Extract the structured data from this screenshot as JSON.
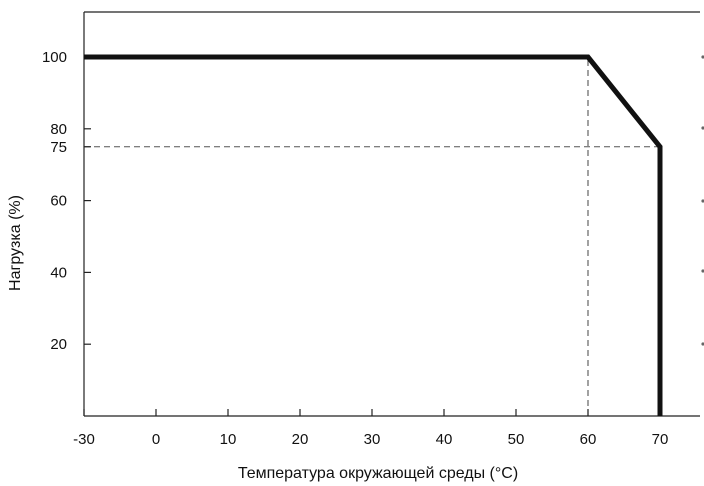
{
  "chart_data": {
    "type": "line",
    "title": "",
    "xlabel": "Температура окружающей среды (°C)",
    "ylabel": "Нагрузка (%)",
    "xlim": [
      -30,
      74
    ],
    "ylim": [
      0,
      113
    ],
    "x_ticks": [
      "-30",
      "0",
      "10",
      "20",
      "30",
      "40",
      "50",
      "60",
      "70"
    ],
    "y_ticks": [
      "100",
      "80",
      "75",
      "60",
      "40",
      "20"
    ],
    "series": [
      {
        "x": [
          -30,
          60,
          70,
          70
        ],
        "y": [
          100,
          100,
          75,
          0
        ]
      }
    ],
    "reference_lines": [
      {
        "points": [
          [
            -30,
            75
          ],
          [
            70,
            75
          ]
        ],
        "style": "dashed"
      },
      {
        "points": [
          [
            60,
            0
          ],
          [
            60,
            100
          ]
        ],
        "style": "dashed"
      }
    ],
    "grid": false,
    "legend": "none",
    "colors": {
      "line": "#111111",
      "axis": "#222222",
      "dashed": "#555555",
      "text": "#111111"
    }
  }
}
